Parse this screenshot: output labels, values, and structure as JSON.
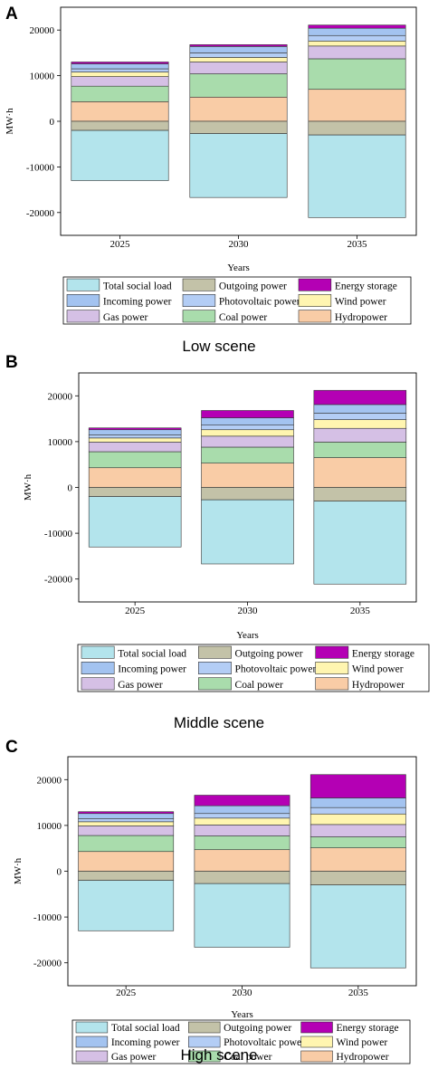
{
  "legend_order": [
    "Total social load",
    "Outgoing power",
    "Energy storage",
    "Incoming power",
    "Photovoltaic power",
    "Wind power",
    "Gas power",
    "Coal power",
    "Hydropower"
  ],
  "colors": {
    "Total social load": "#b3e4ec",
    "Outgoing power": "#c3c2a8",
    "Energy storage": "#b400b4",
    "Incoming power": "#a3c3f0",
    "Photovoltaic power": "#b3cdf5",
    "Wind power": "#fff5b0",
    "Gas power": "#d5c0e5",
    "Coal power": "#a9dcac",
    "Hydropower": "#f9cca6"
  },
  "chart_data": [
    {
      "panel": "A",
      "caption": "Low scene",
      "type": "bar",
      "stacked": true,
      "categories": [
        "2025",
        "2030",
        "2035"
      ],
      "xlabel": "Years",
      "ylabel": "MW·h",
      "ylim": [
        -25000,
        25000
      ],
      "yticks": [
        -20000,
        -10000,
        0,
        10000,
        20000
      ],
      "series": [
        {
          "name": "Hydropower",
          "values": [
            4300,
            5300,
            7000
          ]
        },
        {
          "name": "Coal power",
          "values": [
            3400,
            5100,
            6700
          ]
        },
        {
          "name": "Gas power",
          "values": [
            2100,
            2600,
            2800
          ]
        },
        {
          "name": "Wind power",
          "values": [
            1000,
            1000,
            1100
          ]
        },
        {
          "name": "Photovoltaic power",
          "values": [
            700,
            1000,
            1200
          ]
        },
        {
          "name": "Incoming power",
          "values": [
            1100,
            1400,
            1600
          ]
        },
        {
          "name": "Energy storage",
          "values": [
            400,
            400,
            700
          ]
        },
        {
          "name": "Outgoing power",
          "values": [
            -2000,
            -2700,
            -3000
          ]
        },
        {
          "name": "Total social load",
          "values": [
            -11000,
            -14000,
            -18100
          ]
        }
      ]
    },
    {
      "panel": "B",
      "caption": "Middle scene",
      "type": "bar",
      "stacked": true,
      "categories": [
        "2025",
        "2030",
        "2035"
      ],
      "xlabel": "Years",
      "ylabel": "MW·h",
      "ylim": [
        -25000,
        25000
      ],
      "yticks": [
        -20000,
        -10000,
        0,
        10000,
        20000
      ],
      "series": [
        {
          "name": "Hydropower",
          "values": [
            4300,
            5300,
            6500
          ]
        },
        {
          "name": "Coal power",
          "values": [
            3500,
            3500,
            3400
          ]
        },
        {
          "name": "Gas power",
          "values": [
            2100,
            2400,
            3000
          ]
        },
        {
          "name": "Wind power",
          "values": [
            900,
            1400,
            1900
          ]
        },
        {
          "name": "Photovoltaic power",
          "values": [
            700,
            1000,
            1400
          ]
        },
        {
          "name": "Incoming power",
          "values": [
            1100,
            1600,
            1900
          ]
        },
        {
          "name": "Energy storage",
          "values": [
            400,
            1600,
            3100
          ]
        },
        {
          "name": "Outgoing power",
          "values": [
            -2000,
            -2700,
            -3000
          ]
        },
        {
          "name": "Total social load",
          "values": [
            -11000,
            -14000,
            -18100
          ]
        }
      ]
    },
    {
      "panel": "C",
      "caption": "High scene",
      "type": "bar",
      "stacked": true,
      "categories": [
        "2025",
        "2030",
        "2035"
      ],
      "xlabel": "Years",
      "ylabel": "MW·h",
      "ylim": [
        -25000,
        25000
      ],
      "yticks": [
        -20000,
        -10000,
        0,
        10000,
        20000
      ],
      "series": [
        {
          "name": "Hydropower",
          "values": [
            4300,
            4700,
            5100
          ]
        },
        {
          "name": "Coal power",
          "values": [
            3500,
            3000,
            2400
          ]
        },
        {
          "name": "Gas power",
          "values": [
            2100,
            2400,
            2700
          ]
        },
        {
          "name": "Wind power",
          "values": [
            900,
            1500,
            2300
          ]
        },
        {
          "name": "Photovoltaic power",
          "values": [
            700,
            1000,
            1400
          ]
        },
        {
          "name": "Incoming power",
          "values": [
            1100,
            1700,
            2100
          ]
        },
        {
          "name": "Energy storage",
          "values": [
            400,
            2300,
            5100
          ]
        },
        {
          "name": "Outgoing power",
          "values": [
            -2000,
            -2700,
            -3000
          ]
        },
        {
          "name": "Total social load",
          "values": [
            -11000,
            -13900,
            -18100
          ]
        }
      ]
    }
  ]
}
